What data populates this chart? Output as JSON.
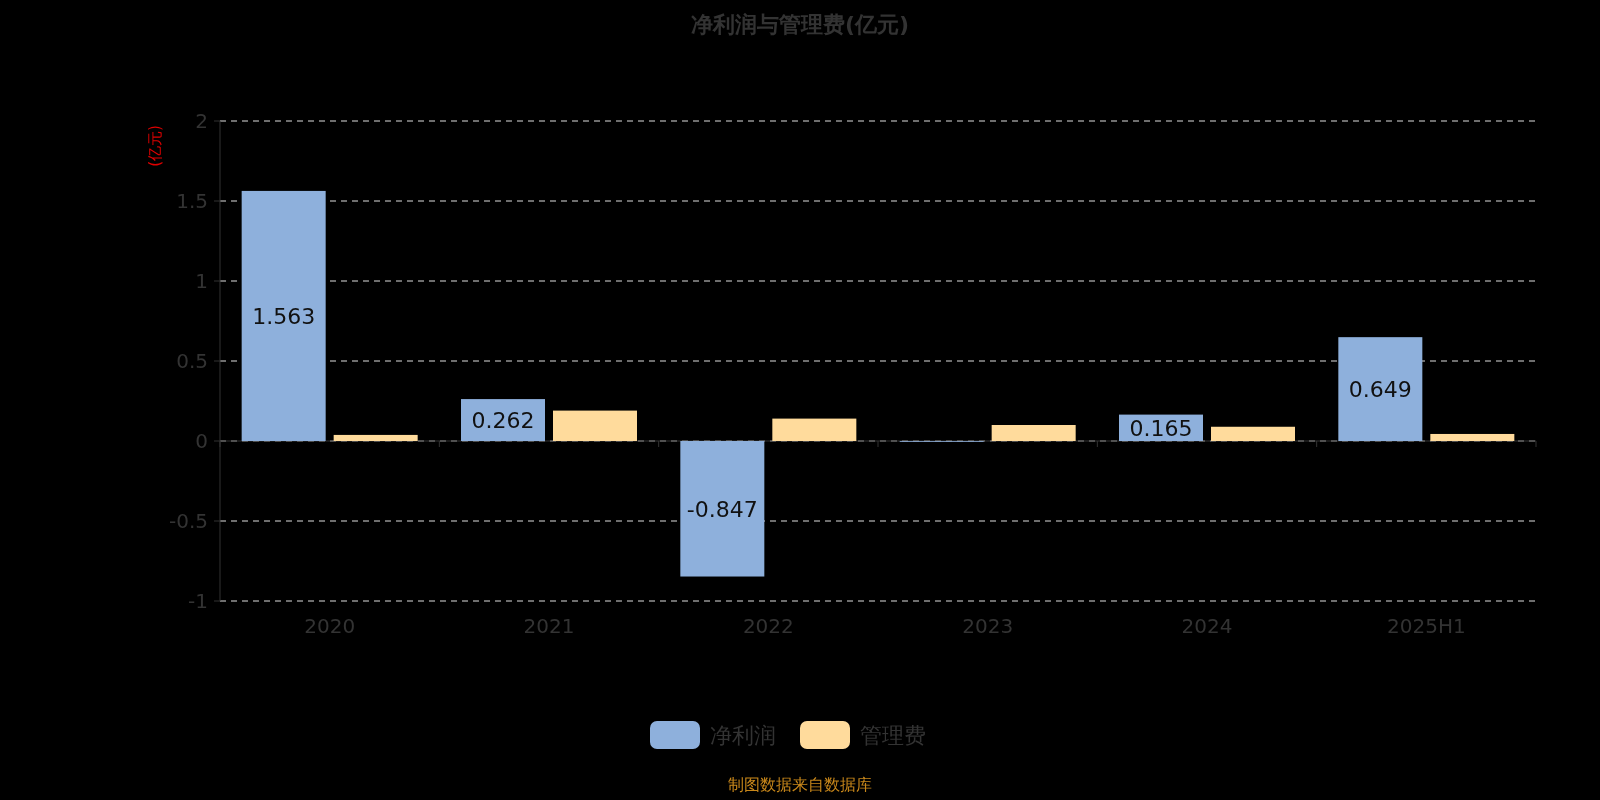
{
  "chart_data": {
    "type": "bar",
    "title": "净利润与管理费(亿元)",
    "ylabel": "(亿元)",
    "categories": [
      "2020",
      "2021",
      "2022",
      "2023",
      "2024",
      "2025H1"
    ],
    "series": [
      {
        "name": "净利润",
        "color": "#8eb0dc",
        "values": [
          1.563,
          0.262,
          -0.847,
          -0.005,
          0.165,
          0.649
        ],
        "value_labels": [
          "1.563",
          "0.262",
          "-0.847",
          null,
          "0.165",
          "0.649"
        ]
      },
      {
        "name": "管理费",
        "color": "#ffdb9c",
        "values": [
          0.038,
          0.19,
          0.14,
          0.1,
          0.089,
          0.044
        ]
      }
    ],
    "ylim": [
      -1,
      2
    ],
    "yticks": [
      -1,
      -0.5,
      0,
      0.5,
      1,
      1.5,
      2
    ],
    "grid": "y",
    "legend": "bottom",
    "annotations": [
      "制图数据来自数据库"
    ]
  }
}
